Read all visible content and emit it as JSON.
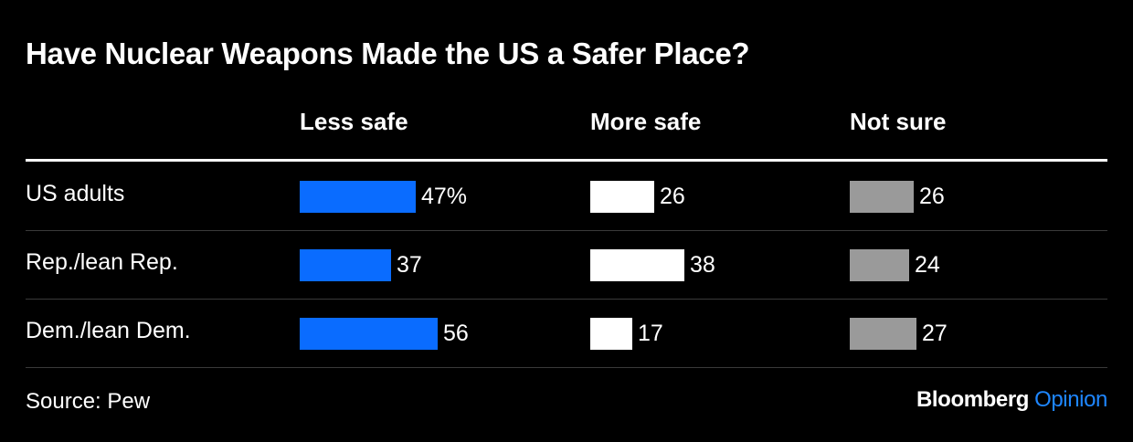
{
  "chart_data": {
    "type": "bar",
    "title": "Have Nuclear Weapons Made the US a Safer Place?",
    "categories": [
      "US adults",
      "Rep./lean Rep.",
      "Dem./lean Dem."
    ],
    "series": [
      {
        "name": "Less safe",
        "values": [
          47,
          37,
          56
        ],
        "labels": [
          "47%",
          "37",
          "56"
        ],
        "color": "#0a6cff"
      },
      {
        "name": "More safe",
        "values": [
          26,
          38,
          17
        ],
        "labels": [
          "26",
          "38",
          "17"
        ],
        "color": "#ffffff"
      },
      {
        "name": "Not sure",
        "values": [
          26,
          24,
          27
        ],
        "labels": [
          "26",
          "24",
          "27"
        ],
        "color": "#9a9a9a"
      }
    ],
    "grid": false,
    "legend": "column headers"
  },
  "footer": {
    "source": "Source: Pew",
    "brand": "Bloomberg",
    "brand_suffix": "Opinion"
  },
  "colors": {
    "background": "#000000",
    "text": "#ffffff",
    "brand_accent": "#1e86ff"
  }
}
